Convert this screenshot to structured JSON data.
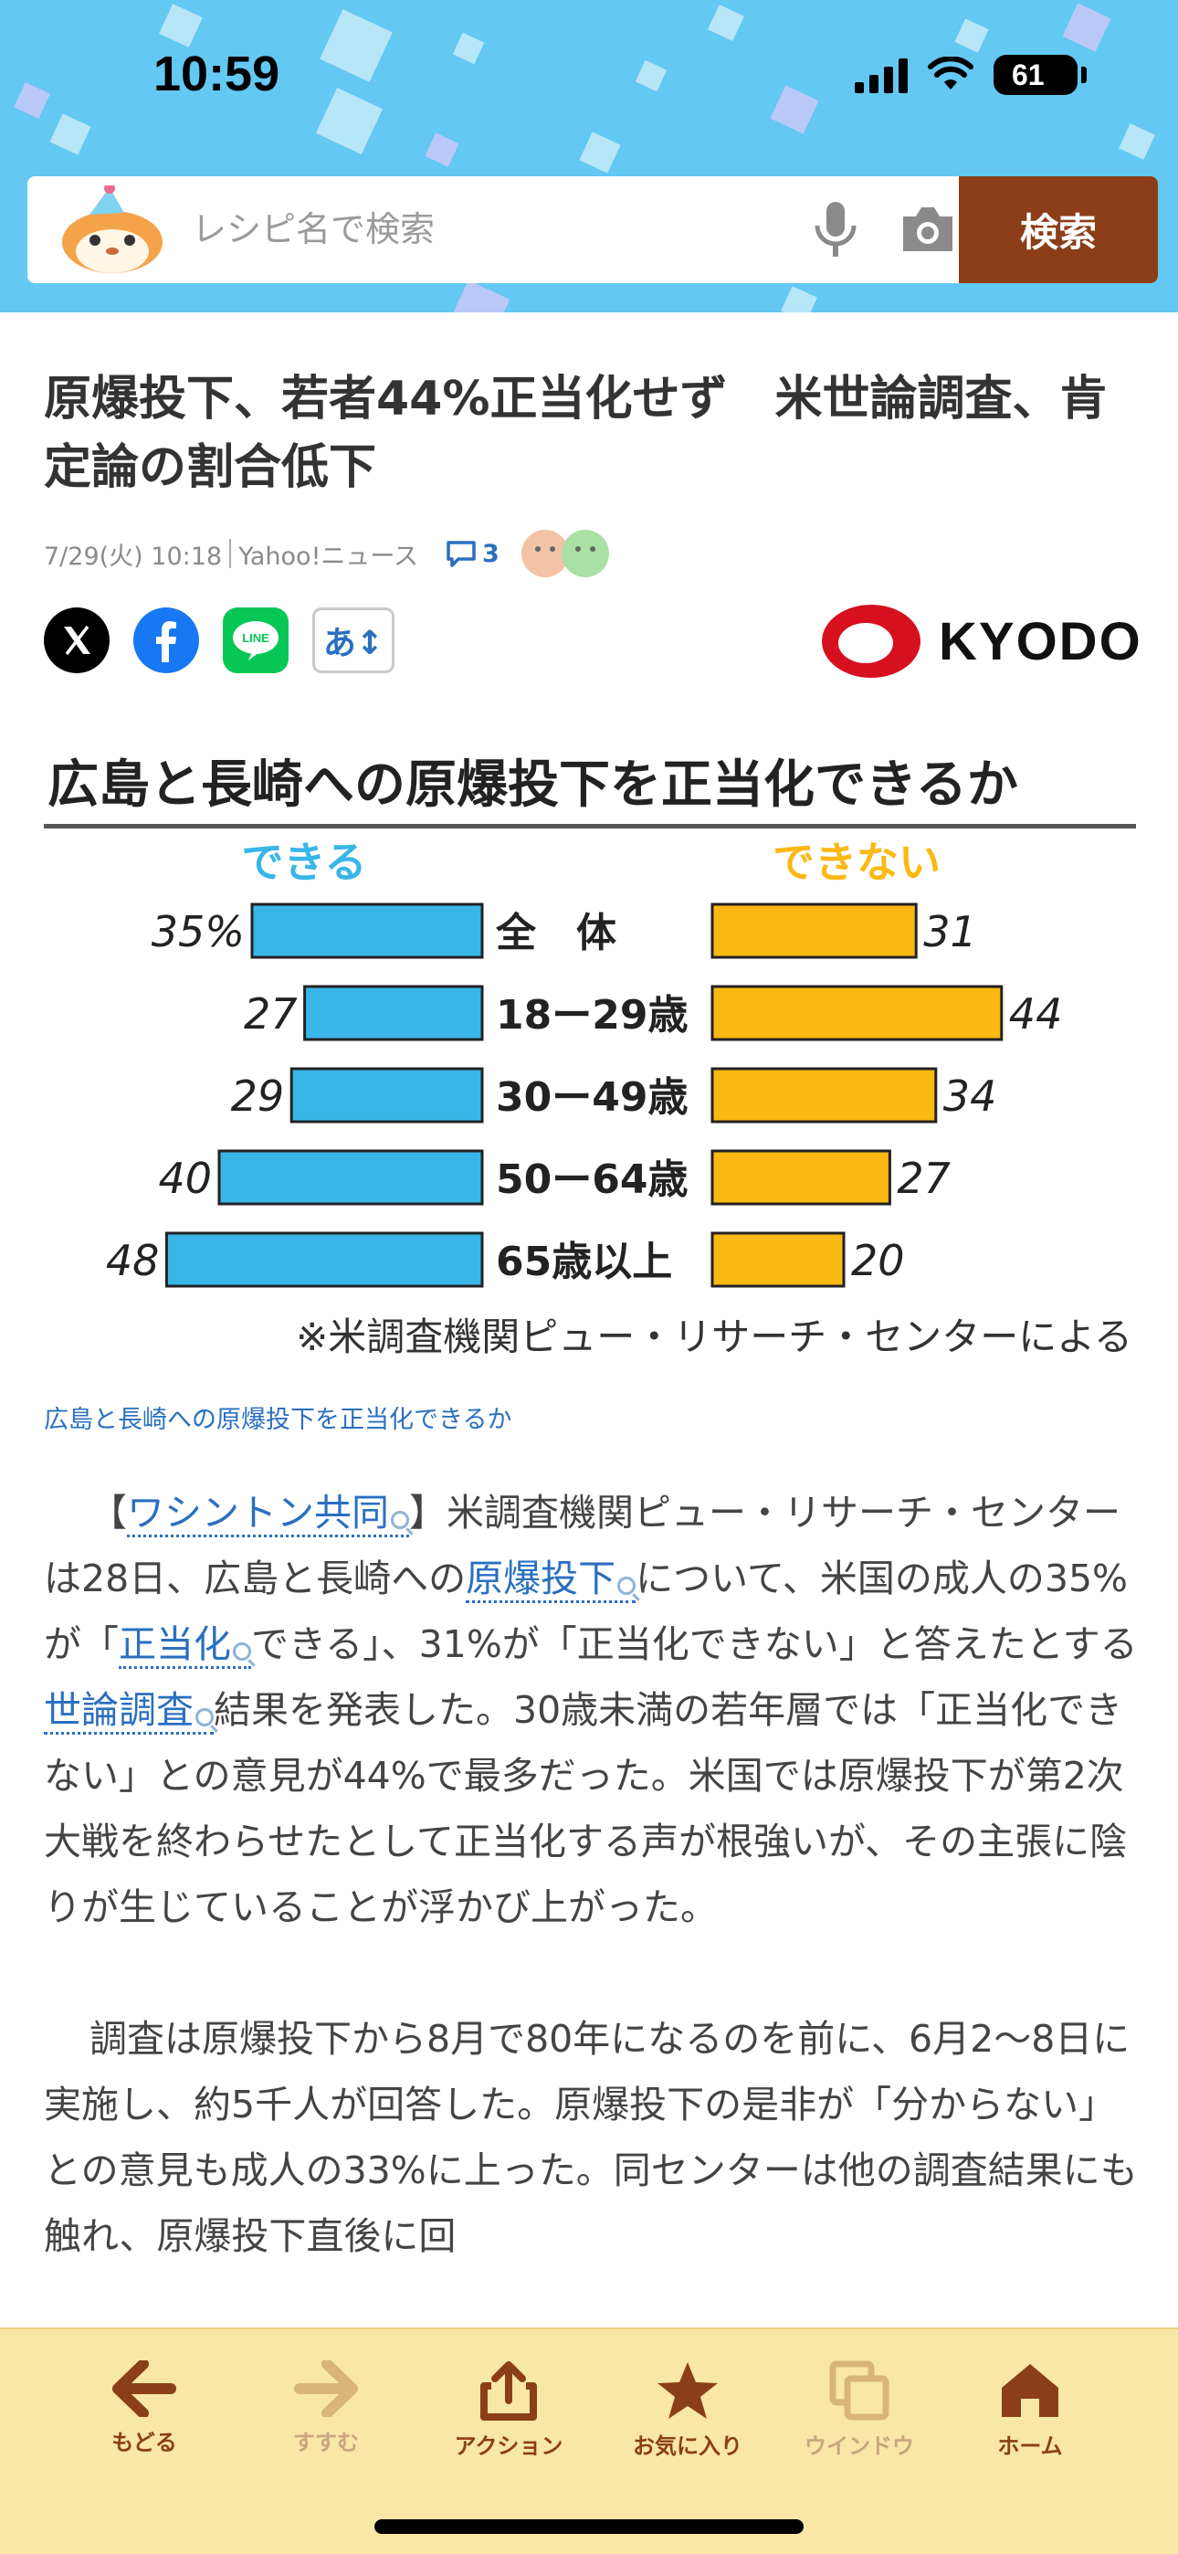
{
  "status_bar": {
    "time": "10:59",
    "battery": "61"
  },
  "search": {
    "placeholder": "レシピ名で検索",
    "button_label": "検索"
  },
  "article": {
    "headline": "原爆投下、若者44%正当化せず　米世論調査、肯定論の割合低下",
    "date": "7/29(火) 10:18",
    "source": "Yahoo!ニュース",
    "comment_count": "3",
    "font_size_label": "あ↕",
    "publisher_logo_text": "KYODO",
    "image_caption": "広島と長崎への原爆投下を正当化できるか",
    "paragraphs": [
      [
        {
          "t": "【"
        },
        {
          "t": "ワシントン共同",
          "k": true
        },
        {
          "t": "】米調査機関ピュー・リサーチ・センターは28日、広島と長崎への"
        },
        {
          "t": "原爆投下",
          "k": true
        },
        {
          "t": "について、米国の成人の35%が「"
        },
        {
          "t": "正当化",
          "k": true
        },
        {
          "t": "できる」、31%が「正当化できない」と答えたとする"
        },
        {
          "t": "世論調査",
          "k": true
        },
        {
          "t": "結果を発表した。30歳未満の若年層では「正当化できない」との意見が44%で最多だった。米国では原爆投下が第2次大戦を終わらせたとして正当化する声が根強いが、その主張に陰りが生じていることが浮かび上がった。"
        }
      ],
      [
        {
          "t": "調査は原爆投下から8月で80年になるのを前に、6月2～8日に実施し、約5千人が回答した。原爆投下の是非が「分からない」との意見も成人の33%に上った。同センターは他の調査結果にも触れ、原爆投下直後に回"
        }
      ]
    ]
  },
  "chart_data": {
    "type": "bar",
    "title": "広島と長崎への原爆投下を正当化できるか",
    "categories": [
      "全　体",
      "18ー29歳",
      "30ー49歳",
      "50ー64歳",
      "65歳以上"
    ],
    "series": [
      {
        "name": "できる",
        "values": [
          35,
          27,
          29,
          40,
          48
        ],
        "value_labels": [
          "35%",
          "27",
          "29",
          "40",
          "48"
        ],
        "color": "#38b6e8"
      },
      {
        "name": "できない",
        "values": [
          31,
          44,
          34,
          27,
          20
        ],
        "value_labels": [
          "31",
          "44",
          "34",
          "27",
          "20"
        ],
        "color": "#fcb813"
      }
    ],
    "note": "※米調査機関ピュー・リサーチ・センターによる",
    "legend": "top"
  },
  "nav": {
    "items": [
      {
        "label": "もどる",
        "icon": "arrow-left-icon",
        "enabled": true
      },
      {
        "label": "すすむ",
        "icon": "arrow-right-icon",
        "enabled": false
      },
      {
        "label": "アクション",
        "icon": "share-icon",
        "enabled": true
      },
      {
        "label": "お気に入り",
        "icon": "star-icon",
        "enabled": true
      },
      {
        "label": "ウインドウ",
        "icon": "windows-icon",
        "enabled": false
      },
      {
        "label": "ホーム",
        "icon": "home-icon",
        "enabled": true
      }
    ]
  },
  "colors": {
    "header_bg": "#63c8f2",
    "brand_brown": "#8b3e17",
    "nav_bg": "#f8e7a7",
    "link_blue": "#2a6fc0"
  }
}
